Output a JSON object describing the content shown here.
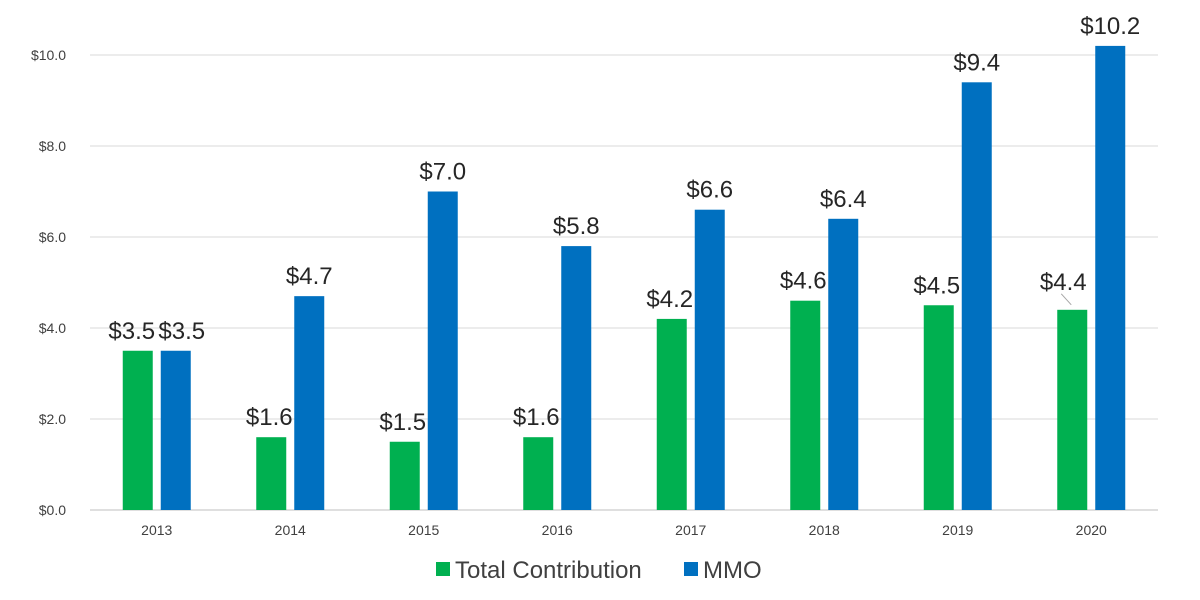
{
  "chart_data": {
    "type": "bar",
    "categories": [
      "2013",
      "2014",
      "2015",
      "2016",
      "2017",
      "2018",
      "2019",
      "2020"
    ],
    "series": [
      {
        "name": "Total Contribution",
        "color": "#00b050",
        "values": [
          3.5,
          1.6,
          1.5,
          1.6,
          4.2,
          4.6,
          4.5,
          4.4
        ],
        "labels": [
          "$3.5",
          "$1.6",
          "$1.5",
          "$1.6",
          "$4.2",
          "$4.6",
          "$4.5",
          "$4.4"
        ]
      },
      {
        "name": "MMO",
        "color": "#0070c0",
        "values": [
          3.5,
          4.7,
          7.0,
          5.8,
          6.6,
          6.4,
          9.4,
          10.2
        ],
        "labels": [
          "$3.5",
          "$4.7",
          "$7.0",
          "$5.8",
          "$6.6",
          "$6.4",
          "$9.4",
          "$10.2"
        ]
      }
    ],
    "y_ticks": [
      0,
      2,
      4,
      6,
      8,
      10
    ],
    "y_tick_labels": [
      "$0.0",
      "$2.0",
      "$4.0",
      "$6.0",
      "$8.0",
      "$10.0"
    ],
    "ylim": [
      0,
      10
    ],
    "title": "",
    "xlabel": "",
    "ylabel": "",
    "grid": true,
    "legend_position": "bottom-center"
  }
}
